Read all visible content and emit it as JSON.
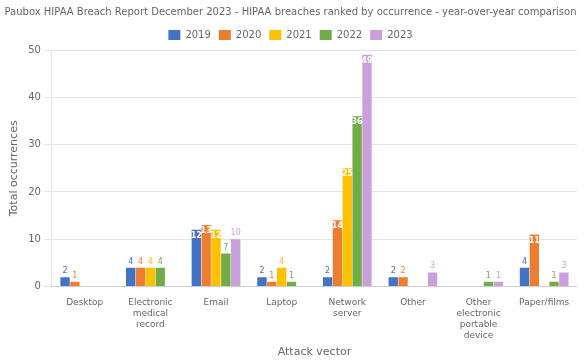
{
  "chart_data": {
    "type": "bar",
    "title": "Paubox HIPAA Breach Report December 2023 - HIPAA breaches ranked by occurrence - year-over-year comparison",
    "xlabel": "Attack vector",
    "ylabel": "Total occurrences",
    "categories": [
      "Desktop",
      "Electronic medical record",
      "Email",
      "Laptop",
      "Network server",
      "Other",
      "Other electronic portable device",
      "Paper/films"
    ],
    "series": [
      {
        "name": "2019",
        "color": "#4472c4",
        "values": [
          2,
          4,
          12,
          2,
          2,
          2,
          0,
          4
        ],
        "value_labels": [
          "2",
          "4",
          "12",
          "2",
          "2",
          "2",
          null,
          "4"
        ]
      },
      {
        "name": "2020",
        "color": "#ed7d31",
        "values": [
          1,
          4,
          13,
          1,
          14,
          2,
          0,
          11
        ],
        "value_labels": [
          "1",
          "4",
          "13",
          "1",
          "14",
          "2",
          null,
          "11"
        ]
      },
      {
        "name": "2021",
        "color": "#ffc000",
        "values": [
          0,
          4,
          12,
          4,
          25,
          0,
          0,
          0
        ],
        "value_labels": [
          null,
          "4",
          "12",
          "4",
          "25",
          null,
          null,
          null
        ]
      },
      {
        "name": "2022",
        "color": "#70ad47",
        "values": [
          0,
          4,
          7,
          1,
          36,
          0,
          1,
          1
        ],
        "value_labels": [
          null,
          "4",
          "7",
          "1",
          "36",
          null,
          "1",
          "1"
        ]
      },
      {
        "name": "2023",
        "color": "#c9a0dc",
        "values": [
          0,
          0,
          10,
          0,
          49,
          3,
          1,
          3
        ],
        "value_labels": [
          null,
          null,
          "10",
          null,
          "49",
          "3",
          "1",
          "3"
        ]
      }
    ],
    "ylim": [
      0,
      50
    ],
    "yticks": [
      0,
      10,
      20,
      30,
      40,
      50
    ],
    "grid": true,
    "legend": "top",
    "data_labels": true
  }
}
